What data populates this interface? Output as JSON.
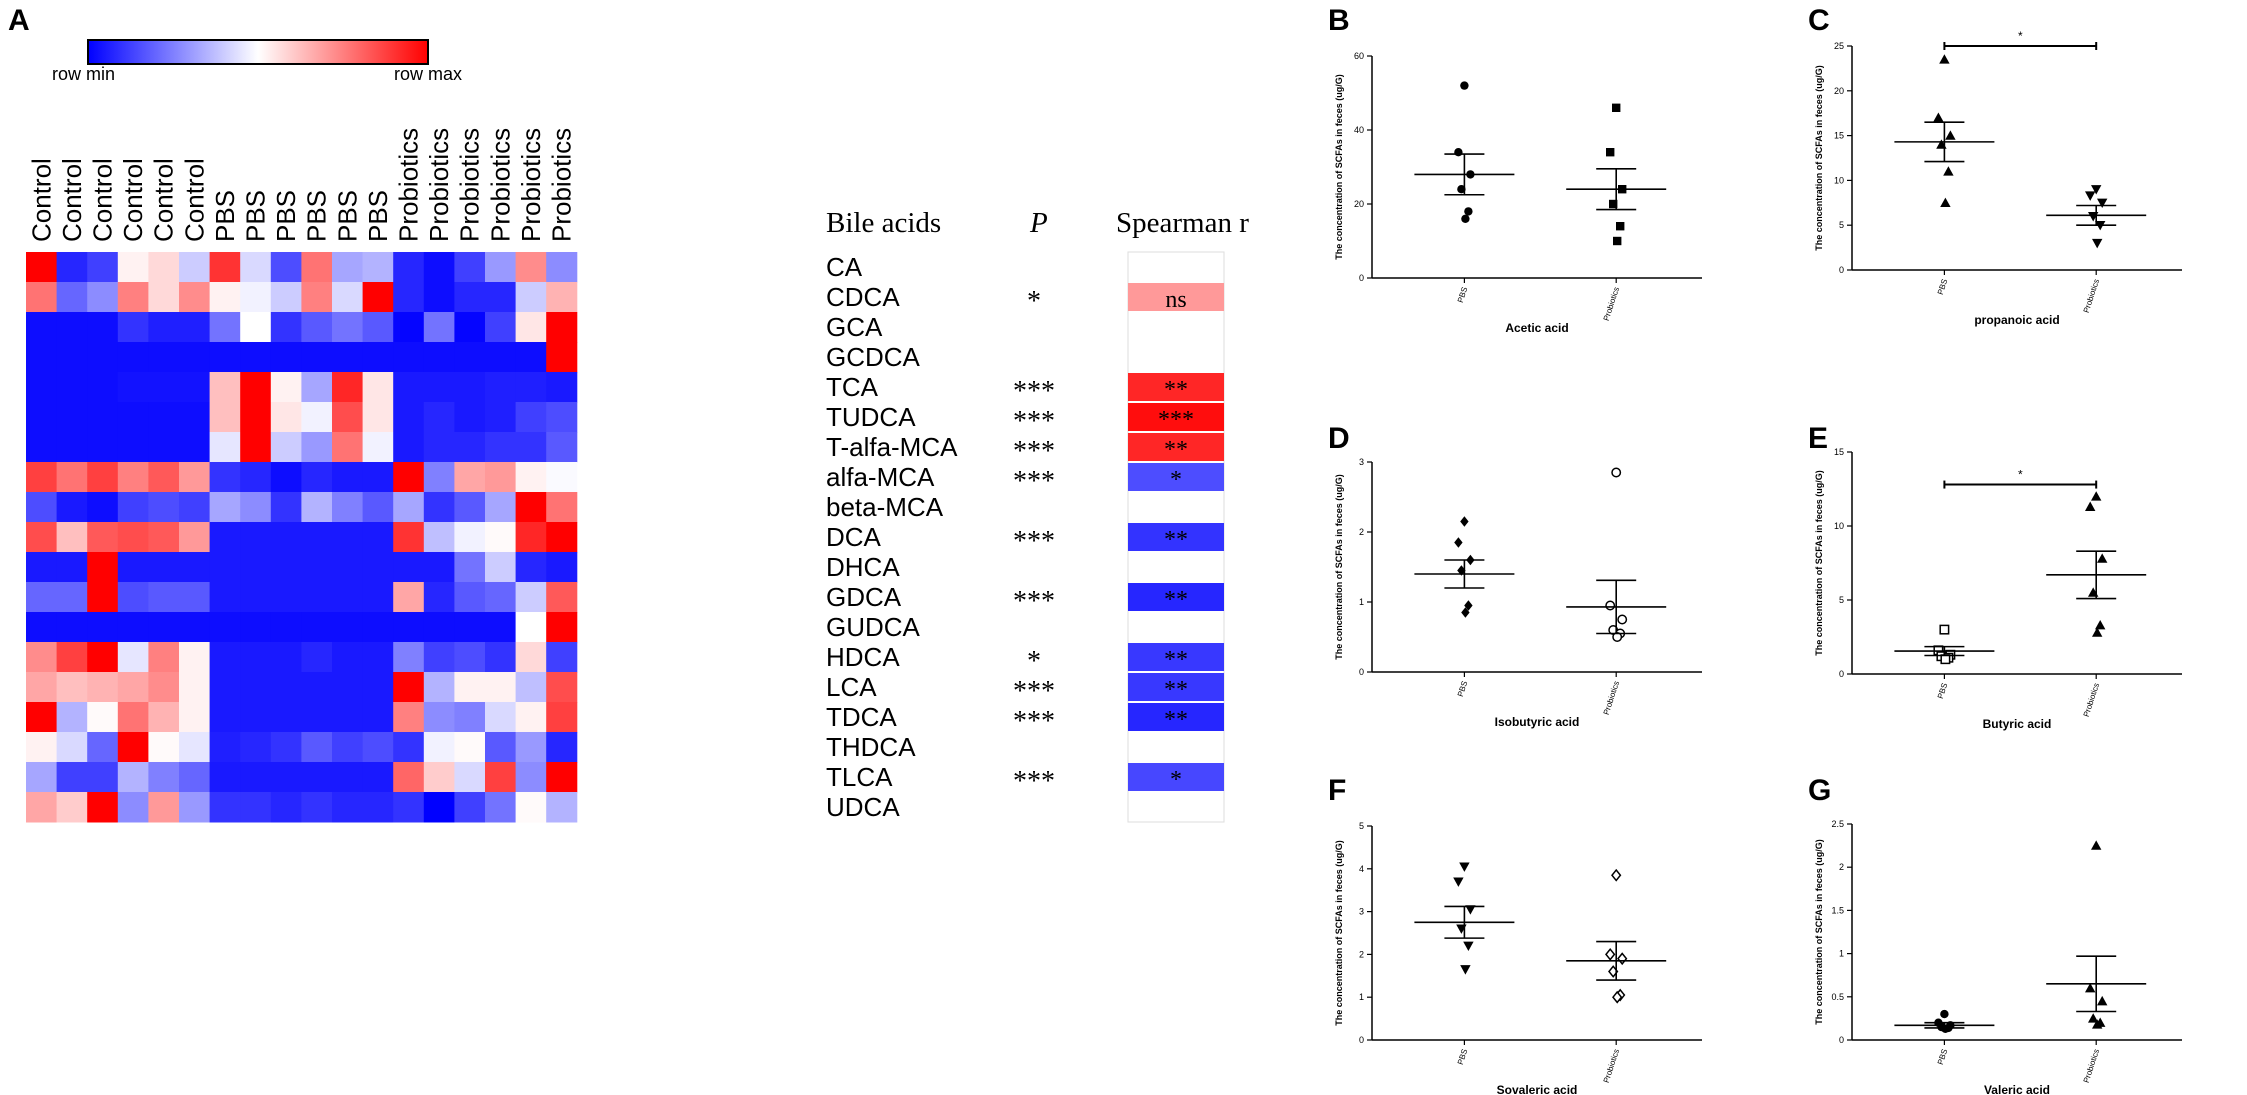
{
  "panel_labels": {
    "a": "A",
    "b": "B",
    "c": "C",
    "d": "D",
    "e": "E",
    "f": "F",
    "g": "G"
  },
  "colors": {
    "min": "#0000ff",
    "mid": "#ffffff",
    "max": "#ff0000"
  },
  "chart_data": [
    {
      "type": "heatmap",
      "panel": "A",
      "colorbar": {
        "min_label": "row min",
        "max_label": "row max"
      },
      "columns": [
        "Control",
        "Control",
        "Control",
        "Control",
        "Control",
        "Control",
        "PBS",
        "PBS",
        "PBS",
        "PBS",
        "PBS",
        "PBS",
        "Probiotics",
        "Probiotics",
        "Probiotics",
        "Probiotics",
        "Probiotics",
        "Probiotics"
      ],
      "row_header": "Bile acids",
      "p_header": "P",
      "spearman_header": "Spearman r",
      "rows": [
        "CA",
        "CDCA",
        "GCA",
        "GCDCA",
        "TCA",
        "TUDCA",
        "T-alfa-MCA",
        "alfa-MCA",
        "beta-MCA",
        "DCA",
        "DHCA",
        "GDCA",
        "GUDCA",
        "HDCA",
        "LCA",
        "TDCA",
        "THDCA",
        "TLCA",
        "UDCA"
      ],
      "values": [
        [
          1,
          -0.85,
          -0.75,
          0.05,
          0.15,
          -0.2,
          0.8,
          -0.15,
          -0.7,
          0.55,
          -0.35,
          -0.3,
          -0.85,
          -0.95,
          -0.75,
          -0.4,
          0.45,
          -0.45
        ],
        [
          0.55,
          -0.6,
          -0.45,
          0.5,
          0.15,
          0.45,
          0.05,
          -0.05,
          -0.2,
          0.5,
          -0.15,
          1,
          -0.85,
          -0.95,
          -0.85,
          -0.85,
          -0.2,
          0.3
        ],
        [
          -0.95,
          -0.95,
          -0.95,
          -0.8,
          -0.88,
          -0.88,
          -0.55,
          0,
          -0.8,
          -0.65,
          -0.55,
          -0.65,
          -0.98,
          -0.55,
          -0.98,
          -0.75,
          0.1,
          1
        ],
        [
          -0.95,
          -0.95,
          -0.95,
          -0.95,
          -0.95,
          -0.95,
          -0.95,
          -0.95,
          -0.95,
          -0.95,
          -0.95,
          -0.95,
          -0.95,
          -0.95,
          -0.95,
          -0.95,
          -0.95,
          1
        ],
        [
          -0.95,
          -0.95,
          -0.95,
          -0.93,
          -0.93,
          -0.93,
          0.25,
          1,
          0.05,
          -0.35,
          0.85,
          0.1,
          -0.9,
          -0.9,
          -0.9,
          -0.88,
          -0.88,
          -0.9
        ],
        [
          -0.95,
          -0.95,
          -0.95,
          -0.95,
          -0.95,
          -0.95,
          0.25,
          1,
          0.1,
          -0.05,
          0.7,
          0.1,
          -0.9,
          -0.85,
          -0.9,
          -0.88,
          -0.75,
          -0.7
        ],
        [
          -0.95,
          -0.95,
          -0.95,
          -0.95,
          -0.95,
          -0.95,
          -0.1,
          1,
          -0.2,
          -0.4,
          0.55,
          -0.05,
          -0.9,
          -0.85,
          -0.85,
          -0.8,
          -0.8,
          -0.65
        ],
        [
          0.75,
          0.55,
          0.75,
          0.5,
          0.65,
          0.4,
          -0.8,
          -0.85,
          -0.95,
          -0.85,
          -0.9,
          -0.9,
          1,
          -0.5,
          0.35,
          0.4,
          0.05,
          -0.02
        ],
        [
          -0.7,
          -0.9,
          -0.95,
          -0.75,
          -0.7,
          -0.75,
          -0.35,
          -0.45,
          -0.8,
          -0.3,
          -0.5,
          -0.65,
          -0.35,
          -0.8,
          -0.65,
          -0.35,
          1,
          0.55
        ],
        [
          0.7,
          0.25,
          0.65,
          0.7,
          0.65,
          0.4,
          -0.9,
          -0.9,
          -0.9,
          -0.9,
          -0.9,
          -0.9,
          0.8,
          -0.25,
          -0.05,
          0.02,
          0.85,
          1
        ],
        [
          -0.9,
          -0.9,
          1,
          -0.9,
          -0.9,
          -0.9,
          -0.9,
          -0.9,
          -0.9,
          -0.9,
          -0.9,
          -0.9,
          -0.9,
          -0.9,
          -0.55,
          -0.2,
          -0.85,
          -0.9
        ],
        [
          -0.6,
          -0.6,
          1,
          -0.7,
          -0.65,
          -0.65,
          -0.9,
          -0.9,
          -0.9,
          -0.9,
          -0.9,
          -0.9,
          0.35,
          -0.85,
          -0.65,
          -0.6,
          -0.2,
          0.65
        ],
        [
          -0.95,
          -0.95,
          -0.95,
          -0.95,
          -0.95,
          -0.95,
          -0.95,
          -0.95,
          -0.95,
          -0.95,
          -0.95,
          -0.95,
          -0.95,
          -0.95,
          -0.95,
          -0.95,
          0,
          1
        ],
        [
          0.45,
          0.75,
          1,
          -0.1,
          0.5,
          0.05,
          -0.9,
          -0.9,
          -0.9,
          -0.85,
          -0.9,
          -0.9,
          -0.5,
          -0.75,
          -0.7,
          -0.8,
          0.15,
          -0.75
        ],
        [
          0.35,
          0.25,
          0.3,
          0.35,
          0.45,
          0.05,
          -0.9,
          -0.9,
          -0.9,
          -0.9,
          -0.9,
          -0.9,
          1,
          -0.3,
          0.05,
          0.05,
          -0.25,
          0.7
        ],
        [
          1,
          -0.3,
          0.02,
          0.55,
          0.3,
          0.05,
          -0.9,
          -0.9,
          -0.9,
          -0.9,
          -0.9,
          -0.9,
          0.5,
          -0.45,
          -0.5,
          -0.15,
          0.05,
          0.75
        ],
        [
          0.05,
          -0.15,
          -0.6,
          1,
          0.02,
          -0.1,
          -0.88,
          -0.85,
          -0.8,
          -0.65,
          -0.75,
          -0.7,
          -0.8,
          -0.05,
          0.02,
          -0.65,
          -0.4,
          -0.85
        ],
        [
          -0.35,
          -0.75,
          -0.75,
          -0.3,
          -0.5,
          -0.6,
          -0.9,
          -0.9,
          -0.9,
          -0.9,
          -0.9,
          -0.9,
          0.6,
          0.2,
          -0.15,
          0.75,
          -0.45,
          1
        ],
        [
          0.35,
          0.2,
          1,
          -0.45,
          0.4,
          -0.4,
          -0.8,
          -0.8,
          -0.85,
          -0.8,
          -0.85,
          -0.85,
          -0.8,
          -1,
          -0.75,
          -0.55,
          0.02,
          -0.3
        ]
      ],
      "p": [
        "",
        "*",
        "",
        "",
        "***",
        "***",
        "***",
        "***",
        "",
        "***",
        "",
        "***",
        "",
        "*",
        "***",
        "***",
        "",
        "***",
        ""
      ],
      "spearman": [
        {
          "label": "",
          "value": 0
        },
        {
          "label": "ns",
          "value": 0.4
        },
        {
          "label": "",
          "value": 0
        },
        {
          "label": "",
          "value": 0
        },
        {
          "label": "**",
          "value": 0.85
        },
        {
          "label": "***",
          "value": 0.95
        },
        {
          "label": "**",
          "value": 0.85
        },
        {
          "label": "*",
          "value": -0.7
        },
        {
          "label": "",
          "value": 0
        },
        {
          "label": "**",
          "value": -0.8
        },
        {
          "label": "",
          "value": 0
        },
        {
          "label": "**",
          "value": -0.85
        },
        {
          "label": "",
          "value": 0
        },
        {
          "label": "**",
          "value": -0.78
        },
        {
          "label": "**",
          "value": -0.78
        },
        {
          "label": "**",
          "value": -0.85
        },
        {
          "label": "",
          "value": 0
        },
        {
          "label": "*",
          "value": -0.72
        },
        {
          "label": "",
          "value": 0
        }
      ]
    },
    {
      "type": "scatter",
      "panel": "B",
      "xlabel": "Acetic acid",
      "ylabel": "The concentration of SCFAs in feces (ug/G)",
      "ylim": [
        0,
        60
      ],
      "yticks": [
        0,
        20,
        40,
        60
      ],
      "categories": [
        "PBS",
        "Probiotics"
      ],
      "groups": [
        {
          "name": "PBS",
          "marker": "circle",
          "points": [
            52,
            34,
            28,
            24,
            18,
            16
          ],
          "mean": 28,
          "sem": 5.5
        },
        {
          "name": "Probiotics",
          "marker": "square",
          "points": [
            46,
            34,
            24,
            20,
            14,
            10
          ],
          "mean": 24,
          "sem": 5.5
        }
      ],
      "significance": null
    },
    {
      "type": "scatter",
      "panel": "C",
      "xlabel": "propanoic acid",
      "ylabel": "The concentration of SCFAs in feces (ug/G)",
      "ylim": [
        0,
        25
      ],
      "yticks": [
        0,
        5,
        10,
        15,
        20,
        25
      ],
      "categories": [
        "PBS",
        "Probiotics"
      ],
      "groups": [
        {
          "name": "PBS",
          "marker": "triangle",
          "points": [
            23.5,
            17,
            15,
            14,
            11,
            7.5
          ],
          "mean": 14.3,
          "sem": 2.2
        },
        {
          "name": "Probiotics",
          "marker": "triangle-down",
          "points": [
            9,
            8.3,
            7.5,
            6,
            5,
            3
          ],
          "mean": 6.1,
          "sem": 1.1
        }
      ],
      "significance": {
        "label": "*",
        "from": 0,
        "to": 1,
        "y": 25
      }
    },
    {
      "type": "scatter",
      "panel": "D",
      "xlabel": "Isobutyric acid",
      "ylabel": "The concentration of SCFAs in feces (ug/G)",
      "ylim": [
        0,
        3
      ],
      "yticks": [
        0,
        1,
        2,
        3
      ],
      "categories": [
        "PBS",
        "Probiotics"
      ],
      "groups": [
        {
          "name": "PBS",
          "marker": "diamond",
          "points": [
            2.15,
            1.85,
            1.6,
            1.45,
            0.95,
            0.85
          ],
          "mean": 1.4,
          "sem": 0.2
        },
        {
          "name": "Probiotics",
          "marker": "open-circle",
          "points": [
            2.85,
            0.95,
            0.75,
            0.6,
            0.55,
            0.5
          ],
          "mean": 0.93,
          "sem": 0.38
        }
      ],
      "significance": null
    },
    {
      "type": "scatter",
      "panel": "E",
      "xlabel": "Butyric acid",
      "ylabel": "The concentration of SCFAs in feces (ug/G)",
      "ylim": [
        0,
        15
      ],
      "yticks": [
        0,
        5,
        10,
        15
      ],
      "categories": [
        "PBS",
        "Probiotics"
      ],
      "groups": [
        {
          "name": "PBS",
          "marker": "open-square",
          "points": [
            3,
            1.6,
            1.3,
            1.2,
            1.1,
            1
          ],
          "mean": 1.55,
          "sem": 0.3
        },
        {
          "name": "Probiotics",
          "marker": "triangle",
          "points": [
            12,
            11.3,
            7.8,
            5.5,
            3.3,
            2.8
          ],
          "mean": 6.7,
          "sem": 1.6
        }
      ],
      "significance": {
        "label": "*",
        "from": 0,
        "to": 1,
        "y": 12.8
      }
    },
    {
      "type": "scatter",
      "panel": "F",
      "xlabel": "Sovaleric acid",
      "ylabel": "The concentration of SCFAs in feces (ug/G)",
      "ylim": [
        0,
        5
      ],
      "yticks": [
        0,
        1,
        2,
        3,
        4,
        5
      ],
      "categories": [
        "PBS",
        "Probiotics"
      ],
      "groups": [
        {
          "name": "PBS",
          "marker": "triangle-down",
          "points": [
            4.05,
            3.7,
            3.05,
            2.6,
            2.2,
            1.65
          ],
          "mean": 2.75,
          "sem": 0.37
        },
        {
          "name": "Probiotics",
          "marker": "open-diamond",
          "points": [
            3.85,
            2,
            1.9,
            1.6,
            1.05,
            1
          ],
          "mean": 1.85,
          "sem": 0.45
        }
      ],
      "significance": null
    },
    {
      "type": "scatter",
      "panel": "G",
      "xlabel": "Valeric acid",
      "ylabel": "The concentration of SCFAs in feces (ug/G)",
      "ylim": [
        0,
        2.5
      ],
      "yticks": [
        0,
        0.5,
        1,
        1.5,
        2,
        2.5
      ],
      "categories": [
        "PBS",
        "Probiotics"
      ],
      "groups": [
        {
          "name": "PBS",
          "marker": "circle",
          "points": [
            0.3,
            0.2,
            0.17,
            0.15,
            0.14,
            0.13
          ],
          "mean": 0.17,
          "sem": 0.03
        },
        {
          "name": "Probiotics",
          "marker": "triangle",
          "points": [
            2.25,
            0.6,
            0.45,
            0.25,
            0.2,
            0.18
          ],
          "mean": 0.65,
          "sem": 0.32
        }
      ],
      "significance": null
    }
  ]
}
